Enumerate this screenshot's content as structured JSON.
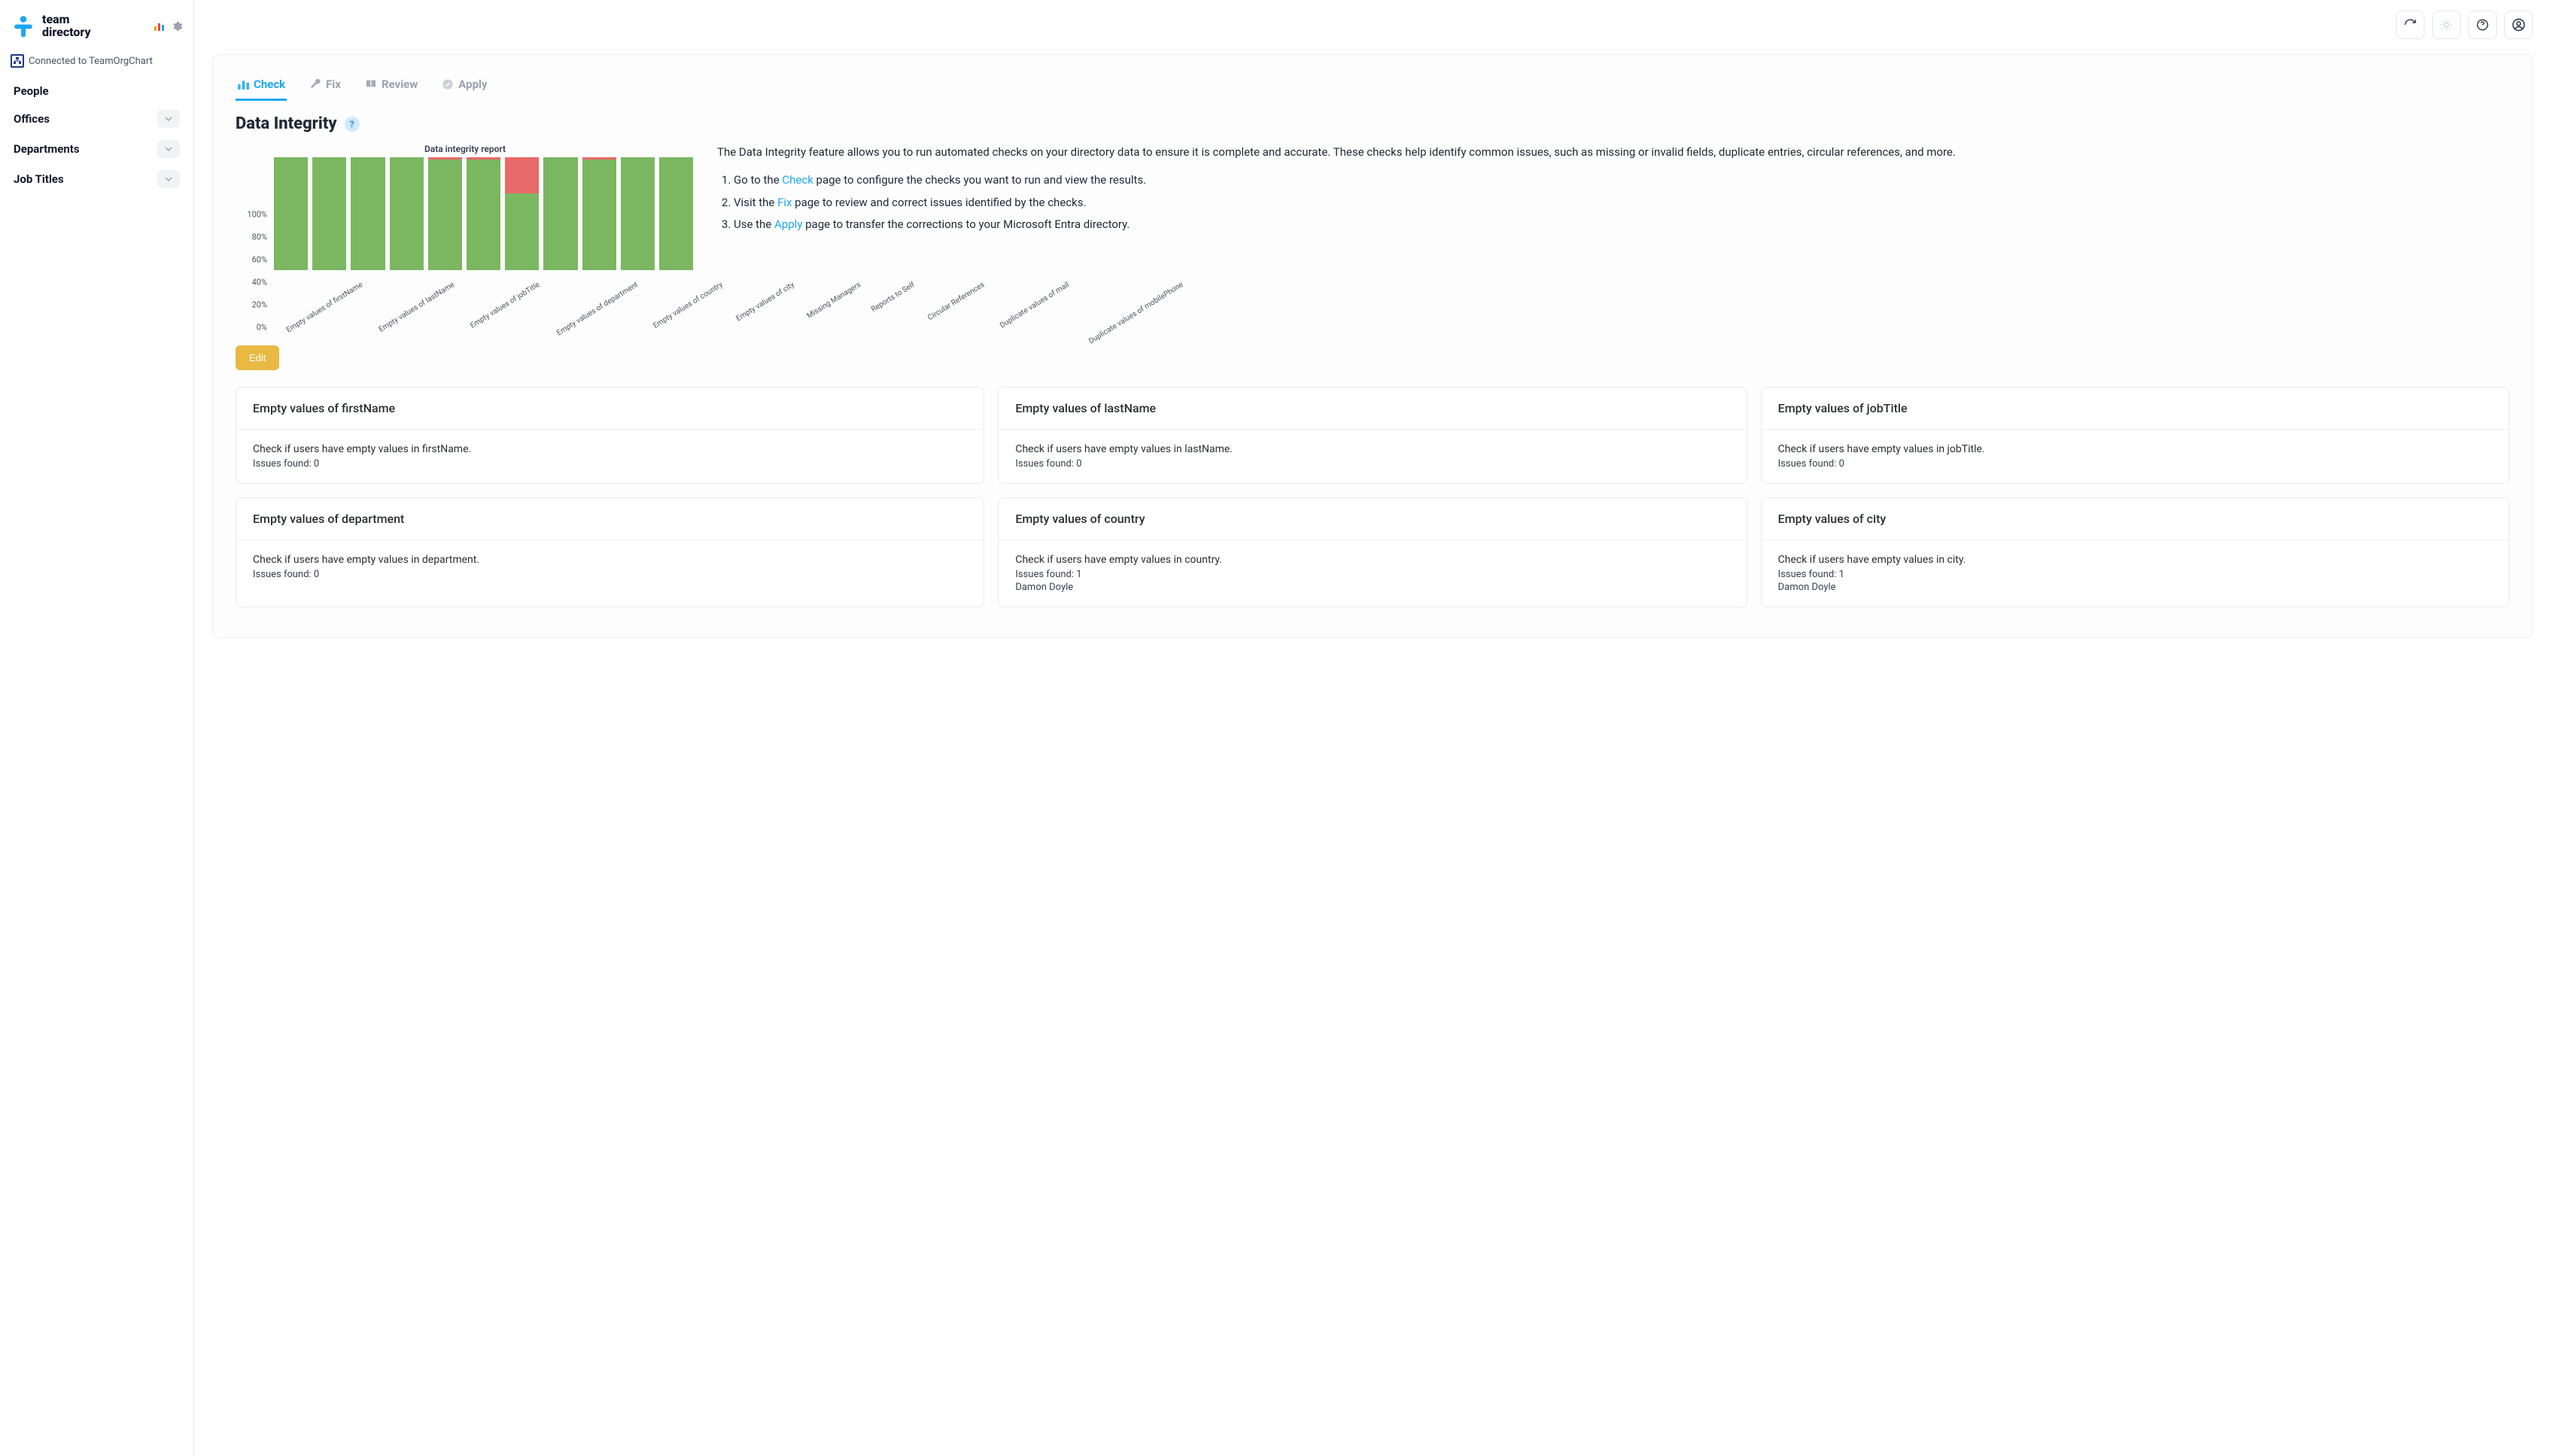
{
  "brand": {
    "name_line1": "team",
    "name_line2": "directory"
  },
  "connected": {
    "label": "Connected to TeamOrgChart"
  },
  "nav": {
    "people": "People",
    "offices": "Offices",
    "departments": "Departments",
    "jobtitles": "Job Titles"
  },
  "tabs": {
    "check": "Check",
    "fix": "Fix",
    "review": "Review",
    "apply": "Apply",
    "active": "check"
  },
  "page": {
    "title": "Data Integrity",
    "edit_label": "Edit"
  },
  "intro": {
    "paragraph": "The Data Integrity feature allows you to run automated checks on your directory data to ensure it is complete and accurate. These checks help identify common issues, such as missing or invalid fields, duplicate entries, circular references, and more.",
    "li1_pre": "Go to the ",
    "li1_link": "Check",
    "li1_post": " page to configure the checks you want to run and view the results.",
    "li2_pre": "Visit the ",
    "li2_link": "Fix",
    "li2_post": " page to review and correct issues identified by the checks.",
    "li3_pre": "Use the ",
    "li3_link": "Apply",
    "li3_post": " page to transfer the corrections to your Microsoft Entra directory."
  },
  "chart": {
    "type": "stacked-bar",
    "title": "Data integrity report",
    "ylim": [
      0,
      100
    ],
    "ytick_step": 20,
    "yticks": [
      "0%",
      "20%",
      "40%",
      "60%",
      "80%",
      "100%"
    ],
    "green": "#7bb661",
    "red": "#e86a6a",
    "background": "#ffffff",
    "categories": [
      "Empty values of firstName",
      "Empty values of lastName",
      "Empty values of jobTitle",
      "Empty values of department",
      "Empty values of country",
      "Empty values of city",
      "Missing Managers",
      "Reports to Self",
      "Circular References",
      "Duplicate values of mail",
      "Duplicate values of mobilePhone"
    ],
    "green_values": [
      100,
      100,
      100,
      100,
      98,
      98,
      68,
      100,
      98,
      100,
      100
    ],
    "red_values": [
      0,
      0,
      0,
      0,
      2,
      2,
      32,
      0,
      2,
      0,
      0
    ]
  },
  "cards": [
    {
      "title": "Empty values of firstName",
      "desc": "Check if users have empty values in firstName.",
      "issues": "Issues found: 0",
      "names": ""
    },
    {
      "title": "Empty values of lastName",
      "desc": "Check if users have empty values in lastName.",
      "issues": "Issues found: 0",
      "names": ""
    },
    {
      "title": "Empty values of jobTitle",
      "desc": "Check if users have empty values in jobTitle.",
      "issues": "Issues found: 0",
      "names": ""
    },
    {
      "title": "Empty values of department",
      "desc": "Check if users have empty values in department.",
      "issues": "Issues found: 0",
      "names": ""
    },
    {
      "title": "Empty values of country",
      "desc": "Check if users have empty values in country.",
      "issues": "Issues found: 1",
      "names": "Damon Doyle"
    },
    {
      "title": "Empty values of city",
      "desc": "Check if users have empty values in city.",
      "issues": "Issues found: 1",
      "names": "Damon Doyle"
    }
  ],
  "colors": {
    "accent": "#1ba8f0",
    "text": "#1f2937",
    "muted": "#9aa3af",
    "border": "#e5e7eb",
    "edit_btn": "#e9b944"
  }
}
